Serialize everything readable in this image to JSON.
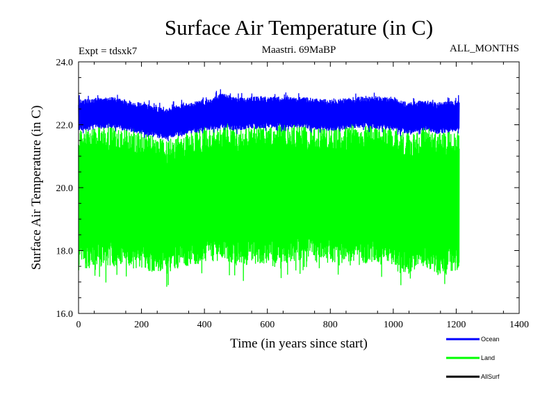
{
  "chart_data": {
    "type": "line",
    "title": "Surface Air Temperature (in C)",
    "subtitle_left": "Expt = tdsxk7",
    "subtitle_center": "Maastri.  69MaBP",
    "subtitle_right": "ALL_MONTHS",
    "xlabel": "Time (in years since start)",
    "ylabel": "Surface Air Temperature (in C)",
    "xlim": [
      0,
      1400
    ],
    "ylim": [
      16.0,
      24.0
    ],
    "x_ticks": [
      0,
      200,
      400,
      600,
      800,
      1000,
      1200,
      1400
    ],
    "x_tick_labels": [
      "0",
      "200",
      "400",
      "600",
      "800",
      "1000",
      "1200",
      "1400"
    ],
    "y_ticks": [
      16.0,
      18.0,
      20.0,
      22.0,
      24.0
    ],
    "y_tick_labels": [
      "16.0",
      "18.0",
      "20.0",
      "22.0",
      "24.0"
    ],
    "legend_position": "bottom-right",
    "series": [
      {
        "name": "Land",
        "color": "#00ff00",
        "x_range": [
          0,
          1210
        ],
        "description": "monthly values oscillating between about 17.2 and 22.0 C",
        "envelope_x": [
          0,
          100,
          200,
          280,
          300,
          400,
          460,
          500,
          600,
          700,
          800,
          900,
          1000,
          1050,
          1100,
          1140,
          1210
        ],
        "envelope_low": [
          17.4,
          17.5,
          17.4,
          17.2,
          17.4,
          17.6,
          17.7,
          17.5,
          17.6,
          17.6,
          17.6,
          17.6,
          17.5,
          17.2,
          17.5,
          17.2,
          17.4
        ],
        "envelope_high": [
          21.9,
          22.0,
          21.8,
          21.5,
          21.6,
          21.9,
          22.0,
          21.9,
          22.0,
          22.0,
          21.9,
          22.0,
          21.9,
          21.7,
          21.9,
          21.8,
          21.8
        ]
      },
      {
        "name": "Ocean",
        "color": "#0000ff",
        "x_range": [
          0,
          1210
        ],
        "description": "monthly values oscillating between about 21.8 and 23.0 C",
        "envelope_x": [
          0,
          100,
          200,
          280,
          300,
          400,
          460,
          500,
          600,
          700,
          800,
          900,
          1000,
          1050,
          1100,
          1140,
          1210
        ],
        "envelope_low": [
          21.8,
          21.9,
          21.7,
          21.5,
          21.6,
          21.8,
          21.9,
          21.8,
          21.9,
          21.9,
          21.8,
          21.9,
          21.8,
          21.7,
          21.8,
          21.7,
          21.8
        ],
        "envelope_high": [
          22.8,
          22.9,
          22.7,
          22.5,
          22.6,
          22.8,
          23.0,
          22.9,
          22.9,
          22.9,
          22.8,
          22.9,
          22.9,
          22.7,
          22.8,
          22.7,
          22.8
        ]
      },
      {
        "name": "AllSurf",
        "color": "#000000",
        "x_range": null,
        "description": "legend entry only; not visible in plot"
      }
    ]
  }
}
